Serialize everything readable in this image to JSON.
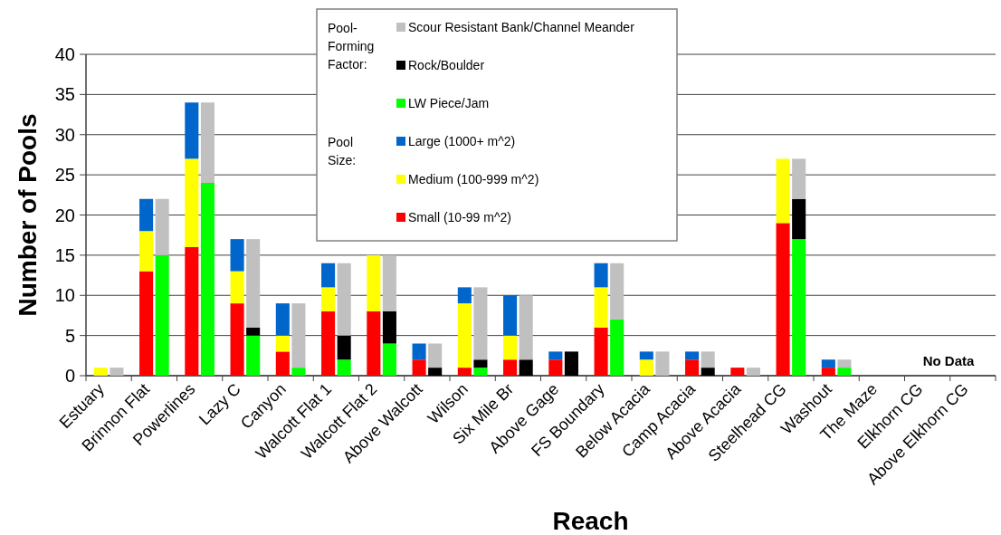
{
  "chart_data": [
    {
      "type": "bar",
      "stacked": true,
      "xlabel": "Reach",
      "ylabel": "Number of Pools",
      "categories": [
        "Estuary",
        "Brinnon Flat",
        "Powerlines",
        "Lazy C",
        "Canyon",
        "Walcott Flat 1",
        "Walcott Flat 2",
        "Above Walcott",
        "Wilson",
        "Six Mile Br",
        "Above Gage",
        "FS Boundary",
        "Below Acacia",
        "Camp Acacia",
        "Above Acacia",
        "Steelhead CG",
        "Washout",
        "The Maze",
        "Elkhorn CG",
        "Above Elkhorn CG"
      ],
      "series": [
        {
          "name": "Small (10-99 m^2)",
          "color": "#ff0000",
          "values": [
            0,
            13,
            16,
            9,
            3,
            8,
            8,
            2,
            1,
            2,
            2,
            6,
            0,
            2,
            1,
            19,
            1,
            null,
            null,
            null
          ]
        },
        {
          "name": "Medium (100-999 m^2)",
          "color": "#ffff00",
          "values": [
            1,
            5,
            11,
            4,
            2,
            3,
            7,
            0,
            8,
            3,
            0,
            5,
            2,
            0,
            0,
            8,
            0,
            null,
            null,
            null
          ]
        },
        {
          "name": "Large (1000+ m^2)",
          "color": "#0066cc",
          "values": [
            0,
            4,
            7,
            4,
            4,
            3,
            0,
            2,
            2,
            5,
            1,
            3,
            1,
            1,
            0,
            0,
            1,
            null,
            null,
            null
          ]
        }
      ],
      "ylim": [
        0,
        40
      ],
      "yticks": [
        0,
        5,
        10,
        15,
        20,
        25,
        30,
        35,
        40
      ],
      "grid": "y",
      "legend": "top",
      "legend_title": "Pool Size:",
      "annotations": [
        "No Data"
      ]
    },
    {
      "type": "bar",
      "stacked": true,
      "categories": [
        null,
        null,
        null,
        null,
        null,
        null,
        null,
        null,
        null,
        null,
        null,
        null,
        null,
        null,
        null,
        null,
        null,
        null,
        null,
        null
      ],
      "series": [
        {
          "name": "LW Piece/Jam",
          "color": "#00ff00",
          "values": [
            0,
            15,
            24,
            5,
            1,
            2,
            4,
            0,
            1,
            0,
            0,
            7,
            0,
            0,
            0,
            17,
            1,
            null,
            null,
            null
          ]
        },
        {
          "name": "Rock/Boulder",
          "color": "#000000",
          "values": [
            0,
            0,
            0,
            1,
            0,
            3,
            4,
            1,
            1,
            2,
            3,
            0,
            0,
            1,
            0,
            5,
            0,
            null,
            null,
            null
          ]
        },
        {
          "name": "Scour Resistant Bank/Channel Meander",
          "color": "#c0c0c0",
          "values": [
            1,
            7,
            10,
            11,
            8,
            9,
            7,
            3,
            9,
            8,
            0,
            7,
            3,
            2,
            1,
            5,
            1,
            null,
            null,
            null
          ]
        }
      ],
      "ylim": [
        0,
        40
      ],
      "yticks": [
        0,
        5,
        10,
        15,
        20,
        25,
        30,
        35,
        40
      ],
      "tick_labels": false,
      "legend": "top",
      "legend_title": "Pool-Forming Factor:"
    }
  ]
}
